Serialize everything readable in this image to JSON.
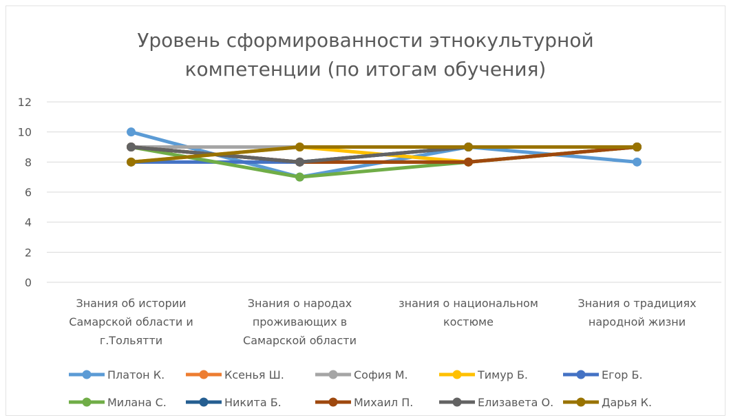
{
  "chart_data": {
    "type": "line",
    "title_lines": [
      "Уровень сформированности этнокультурной",
      "компетенции (по итогам обучения)"
    ],
    "xlabel": "",
    "ylabel": "",
    "ylim": [
      0,
      12
    ],
    "yticks": [
      0,
      2,
      4,
      6,
      8,
      10,
      12
    ],
    "grid": true,
    "legend_position": "bottom",
    "categories": [
      [
        "Знания об истории",
        "Самарской области и",
        "г.Тольятти"
      ],
      [
        "Знания о народах",
        "проживающих в",
        "Самарской области"
      ],
      [
        "знания о национальном",
        "костюме"
      ],
      [
        "Знания о традициях",
        "народной жизни"
      ]
    ],
    "series": [
      {
        "name": "Платон К.",
        "color": "#5b9bd5",
        "values": [
          10,
          7,
          9,
          8
        ]
      },
      {
        "name": "Ксенья Ш.",
        "color": "#ed7d31",
        "values": [
          9,
          8,
          8,
          9
        ]
      },
      {
        "name": "София М.",
        "color": "#a5a5a5",
        "values": [
          9,
          9,
          9,
          9
        ]
      },
      {
        "name": "Тимур Б.",
        "color": "#ffc000",
        "values": [
          8,
          9,
          8,
          9
        ]
      },
      {
        "name": "Егор Б.",
        "color": "#4472c4",
        "values": [
          8,
          8,
          9,
          9
        ]
      },
      {
        "name": "Милана С.",
        "color": "#70ad47",
        "values": [
          9,
          7,
          8,
          9
        ]
      },
      {
        "name": "Никита Б.",
        "color": "#255e91",
        "values": [
          9,
          8,
          9,
          9
        ]
      },
      {
        "name": "Михаил П.",
        "color": "#9e480e",
        "values": [
          9,
          8,
          8,
          9
        ]
      },
      {
        "name": "Елизавета О.",
        "color": "#636363",
        "values": [
          9,
          8,
          9,
          9
        ]
      },
      {
        "name": "Дарья К.",
        "color": "#997300",
        "values": [
          8,
          9,
          9,
          9
        ]
      }
    ]
  }
}
